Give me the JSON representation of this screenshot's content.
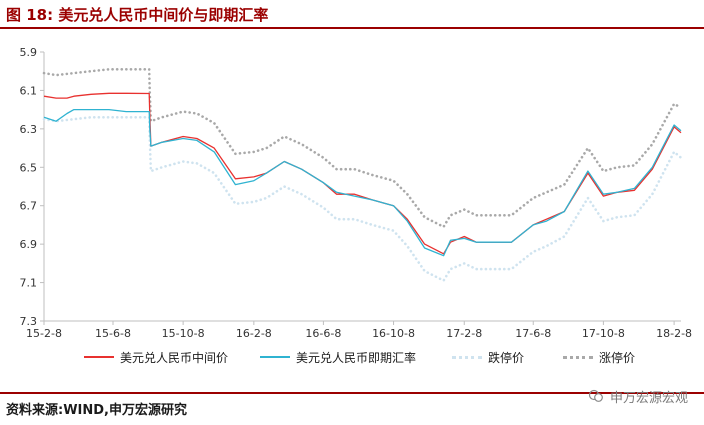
{
  "header": {
    "figure_label": "图 18:",
    "title": "美元兑人民币中间价与即期汇率"
  },
  "footer": {
    "source_label": "资料来源:",
    "source_text": "WIND,申万宏源研究",
    "watermark": "申万宏源宏观"
  },
  "colors": {
    "brand": "#9b0000",
    "mid_rate": "#e8312f",
    "spot_rate": "#2fb3d1",
    "lower_limit": "#cfe3ef",
    "upper_limit": "#a9a9a9",
    "axis": "#bfbfbf"
  },
  "chart_data": {
    "type": "line",
    "title": "美元兑人民币中间价与即期汇率",
    "xlabel": "",
    "ylabel": "",
    "y_inverted": true,
    "ylim": [
      5.9,
      7.3
    ],
    "yticks": [
      "5.9",
      "6.1",
      "6.3",
      "6.5",
      "6.7",
      "6.9",
      "7.1",
      "7.3"
    ],
    "x_tick_labels": [
      "15-2-8",
      "15-6-8",
      "15-10-8",
      "16-2-8",
      "16-6-8",
      "16-10-8",
      "17-2-8",
      "17-6-8",
      "17-10-8",
      "18-2-8"
    ],
    "x_tick_dates": [
      "2015-02-08",
      "2015-06-08",
      "2015-10-08",
      "2016-02-08",
      "2016-06-08",
      "2016-10-08",
      "2017-02-08",
      "2017-06-08",
      "2017-10-08",
      "2018-02-08"
    ],
    "xlim": [
      "2015-02-08",
      "2018-02-20"
    ],
    "grid": false,
    "legend_position": "bottom",
    "series": [
      {
        "name": "美元兑人民币中间价",
        "style": "solid",
        "points": [
          [
            "2015-02-08",
            6.13
          ],
          [
            "2015-03-01",
            6.14
          ],
          [
            "2015-03-20",
            6.14
          ],
          [
            "2015-04-01",
            6.13
          ],
          [
            "2015-05-01",
            6.12
          ],
          [
            "2015-06-01",
            6.115
          ],
          [
            "2015-07-01",
            6.115
          ],
          [
            "2015-08-10",
            6.116
          ],
          [
            "2015-08-11",
            6.23
          ],
          [
            "2015-08-13",
            6.39
          ],
          [
            "2015-09-01",
            6.37
          ],
          [
            "2015-10-08",
            6.34
          ],
          [
            "2015-11-01",
            6.35
          ],
          [
            "2015-12-01",
            6.4
          ],
          [
            "2016-01-07",
            6.56
          ],
          [
            "2016-02-08",
            6.55
          ],
          [
            "2016-03-01",
            6.53
          ],
          [
            "2016-04-01",
            6.47
          ],
          [
            "2016-05-01",
            6.51
          ],
          [
            "2016-06-08",
            6.58
          ],
          [
            "2016-07-01",
            6.64
          ],
          [
            "2016-08-01",
            6.64
          ],
          [
            "2016-09-01",
            6.67
          ],
          [
            "2016-10-08",
            6.7
          ],
          [
            "2016-11-01",
            6.77
          ],
          [
            "2016-12-01",
            6.9
          ],
          [
            "2017-01-03",
            6.95
          ],
          [
            "2017-01-15",
            6.89
          ],
          [
            "2017-02-08",
            6.86
          ],
          [
            "2017-03-01",
            6.89
          ],
          [
            "2017-04-01",
            6.89
          ],
          [
            "2017-05-01",
            6.89
          ],
          [
            "2017-06-08",
            6.8
          ],
          [
            "2017-07-01",
            6.77
          ],
          [
            "2017-08-01",
            6.73
          ],
          [
            "2017-09-11",
            6.53
          ],
          [
            "2017-10-08",
            6.65
          ],
          [
            "2017-11-01",
            6.63
          ],
          [
            "2017-12-01",
            6.62
          ],
          [
            "2018-01-01",
            6.51
          ],
          [
            "2018-02-08",
            6.29
          ],
          [
            "2018-02-20",
            6.32
          ]
        ]
      },
      {
        "name": "美元兑人民币即期汇率",
        "style": "solid",
        "points": [
          [
            "2015-02-08",
            6.24
          ],
          [
            "2015-03-01",
            6.26
          ],
          [
            "2015-03-20",
            6.22
          ],
          [
            "2015-04-01",
            6.2
          ],
          [
            "2015-05-01",
            6.2
          ],
          [
            "2015-06-01",
            6.2
          ],
          [
            "2015-07-01",
            6.21
          ],
          [
            "2015-08-10",
            6.21
          ],
          [
            "2015-08-11",
            6.3
          ],
          [
            "2015-08-13",
            6.39
          ],
          [
            "2015-09-01",
            6.37
          ],
          [
            "2015-10-08",
            6.35
          ],
          [
            "2015-11-01",
            6.36
          ],
          [
            "2015-12-01",
            6.42
          ],
          [
            "2016-01-07",
            6.59
          ],
          [
            "2016-02-08",
            6.57
          ],
          [
            "2016-03-01",
            6.53
          ],
          [
            "2016-04-01",
            6.47
          ],
          [
            "2016-05-01",
            6.51
          ],
          [
            "2016-06-08",
            6.58
          ],
          [
            "2016-07-01",
            6.63
          ],
          [
            "2016-08-01",
            6.65
          ],
          [
            "2016-09-01",
            6.67
          ],
          [
            "2016-10-08",
            6.7
          ],
          [
            "2016-11-01",
            6.78
          ],
          [
            "2016-12-01",
            6.92
          ],
          [
            "2017-01-03",
            6.96
          ],
          [
            "2017-01-15",
            6.88
          ],
          [
            "2017-02-08",
            6.87
          ],
          [
            "2017-03-01",
            6.89
          ],
          [
            "2017-04-01",
            6.89
          ],
          [
            "2017-05-01",
            6.89
          ],
          [
            "2017-06-08",
            6.8
          ],
          [
            "2017-07-01",
            6.78
          ],
          [
            "2017-08-01",
            6.73
          ],
          [
            "2017-09-11",
            6.52
          ],
          [
            "2017-10-08",
            6.64
          ],
          [
            "2017-11-01",
            6.63
          ],
          [
            "2017-12-01",
            6.61
          ],
          [
            "2018-01-01",
            6.5
          ],
          [
            "2018-02-08",
            6.28
          ],
          [
            "2018-02-20",
            6.31
          ]
        ]
      },
      {
        "name": "跌停价",
        "style": "dotted",
        "points": [
          [
            "2015-02-08",
            6.25
          ],
          [
            "2015-03-01",
            6.26
          ],
          [
            "2015-04-01",
            6.25
          ],
          [
            "2015-05-01",
            6.24
          ],
          [
            "2015-06-01",
            6.24
          ],
          [
            "2015-07-01",
            6.24
          ],
          [
            "2015-08-10",
            6.24
          ],
          [
            "2015-08-11",
            6.36
          ],
          [
            "2015-08-13",
            6.52
          ],
          [
            "2015-09-01",
            6.5
          ],
          [
            "2015-10-08",
            6.47
          ],
          [
            "2015-11-01",
            6.48
          ],
          [
            "2015-12-01",
            6.53
          ],
          [
            "2016-01-07",
            6.69
          ],
          [
            "2016-02-08",
            6.68
          ],
          [
            "2016-03-01",
            6.66
          ],
          [
            "2016-04-01",
            6.6
          ],
          [
            "2016-05-01",
            6.64
          ],
          [
            "2016-06-08",
            6.71
          ],
          [
            "2016-07-01",
            6.77
          ],
          [
            "2016-08-01",
            6.77
          ],
          [
            "2016-09-01",
            6.8
          ],
          [
            "2016-10-08",
            6.83
          ],
          [
            "2016-11-01",
            6.91
          ],
          [
            "2016-12-01",
            7.04
          ],
          [
            "2017-01-03",
            7.09
          ],
          [
            "2017-01-15",
            7.03
          ],
          [
            "2017-02-08",
            7.0
          ],
          [
            "2017-03-01",
            7.03
          ],
          [
            "2017-04-01",
            7.03
          ],
          [
            "2017-05-01",
            7.03
          ],
          [
            "2017-06-08",
            6.94
          ],
          [
            "2017-07-01",
            6.91
          ],
          [
            "2017-08-01",
            6.86
          ],
          [
            "2017-09-11",
            6.66
          ],
          [
            "2017-10-08",
            6.78
          ],
          [
            "2017-11-01",
            6.76
          ],
          [
            "2017-12-01",
            6.75
          ],
          [
            "2018-01-01",
            6.64
          ],
          [
            "2018-02-08",
            6.42
          ],
          [
            "2018-02-20",
            6.45
          ]
        ]
      },
      {
        "name": "涨停价",
        "style": "dotted",
        "points": [
          [
            "2015-02-08",
            6.01
          ],
          [
            "2015-03-01",
            6.02
          ],
          [
            "2015-04-01",
            6.01
          ],
          [
            "2015-05-01",
            6.0
          ],
          [
            "2015-06-01",
            5.99
          ],
          [
            "2015-07-01",
            5.99
          ],
          [
            "2015-08-10",
            5.99
          ],
          [
            "2015-08-11",
            6.11
          ],
          [
            "2015-08-13",
            6.26
          ],
          [
            "2015-09-01",
            6.24
          ],
          [
            "2015-10-08",
            6.21
          ],
          [
            "2015-11-01",
            6.22
          ],
          [
            "2015-12-01",
            6.27
          ],
          [
            "2016-01-07",
            6.43
          ],
          [
            "2016-02-08",
            6.42
          ],
          [
            "2016-03-01",
            6.4
          ],
          [
            "2016-04-01",
            6.34
          ],
          [
            "2016-05-01",
            6.38
          ],
          [
            "2016-06-08",
            6.45
          ],
          [
            "2016-07-01",
            6.51
          ],
          [
            "2016-08-01",
            6.51
          ],
          [
            "2016-09-01",
            6.54
          ],
          [
            "2016-10-08",
            6.57
          ],
          [
            "2016-11-01",
            6.64
          ],
          [
            "2016-12-01",
            6.76
          ],
          [
            "2017-01-03",
            6.81
          ],
          [
            "2017-01-15",
            6.75
          ],
          [
            "2017-02-08",
            6.72
          ],
          [
            "2017-03-01",
            6.75
          ],
          [
            "2017-04-01",
            6.75
          ],
          [
            "2017-05-01",
            6.75
          ],
          [
            "2017-06-08",
            6.66
          ],
          [
            "2017-07-01",
            6.63
          ],
          [
            "2017-08-01",
            6.59
          ],
          [
            "2017-09-11",
            6.4
          ],
          [
            "2017-10-08",
            6.52
          ],
          [
            "2017-11-01",
            6.5
          ],
          [
            "2017-12-01",
            6.49
          ],
          [
            "2018-01-01",
            6.38
          ],
          [
            "2018-02-08",
            6.17
          ],
          [
            "2018-02-20",
            6.19
          ]
        ]
      }
    ]
  }
}
